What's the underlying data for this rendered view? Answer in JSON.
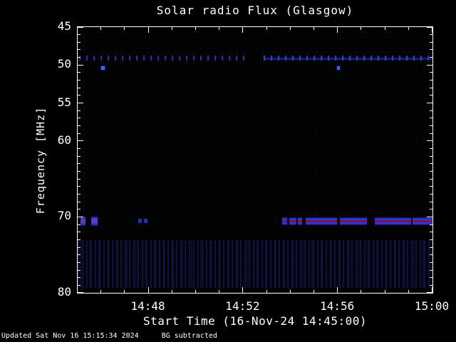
{
  "title": "Solar radio Flux (Glasgow)",
  "ylabel": "Frequency [MHz]",
  "xlabel": "Start Time (16-Nov-24 14:45:00)",
  "footer": {
    "updated": "Updated Sat Nov 16 15:15:34 2024",
    "bg": "BG subtracted"
  },
  "chart_data": {
    "type": "heatmap",
    "title": "Solar radio Flux (Glasgow)",
    "xlabel": "Start Time (16-Nov-24 14:45:00)",
    "ylabel": "Frequency [MHz]",
    "x_start": "14:45:00",
    "x_end": "15:00:00",
    "x_span_minutes": 15,
    "y_range": [
      45,
      80
    ],
    "y_inverted": true,
    "grid": false,
    "x_axis": {
      "major": [
        {
          "t": 3,
          "label": "14:48"
        },
        {
          "t": 7,
          "label": "14:52"
        },
        {
          "t": 11,
          "label": "14:56"
        },
        {
          "t": 15,
          "label": "15:00"
        }
      ],
      "minor_step_minutes": 1
    },
    "y_axis": {
      "major": [
        45,
        50,
        55,
        60,
        70,
        80
      ],
      "minor_step_mhz": 1
    },
    "colors": {
      "background": "#000000",
      "foreground": "#ffffff",
      "signal_blue": "#3340dd",
      "signal_core_red": "#8a1034",
      "noise_navy": "#181f6e"
    },
    "features": [
      {
        "kind": "dashes",
        "t0": 0.06,
        "t1": 7.15,
        "f0": 48.8,
        "f1": 49.45,
        "opacity": 0.8,
        "desc": "periodic interference dashes near 49 MHz"
      },
      {
        "kind": "dashes",
        "t0": 7.85,
        "t1": 14.97,
        "f0": 48.8,
        "f1": 49.45,
        "opacity": 1,
        "desc": "periodic interference dashes near 49 MHz"
      },
      {
        "kind": "line",
        "t0": 7.85,
        "t1": 15,
        "f0": 49.0,
        "f1": 49.3,
        "opacity": 0.45,
        "desc": "faint continuous carrier near 49 MHz"
      },
      {
        "kind": "dot",
        "t0": 1.0,
        "t1": 1.14,
        "f0": 50.2,
        "f1": 50.65,
        "desc": "bright point ~50.4 MHz at ~14:46"
      },
      {
        "kind": "dot",
        "t0": 10.95,
        "t1": 11.09,
        "f0": 50.2,
        "f1": 50.65,
        "desc": "bright point ~50.4 MHz at ~14:56"
      },
      {
        "kind": "blob",
        "t0": 0.12,
        "t1": 0.33,
        "f0": 70.0,
        "f1": 71.2,
        "desc": "strong burst ~70.6 MHz"
      },
      {
        "kind": "blob",
        "t0": 0.57,
        "t1": 0.84,
        "f0": 70.0,
        "f1": 71.2,
        "desc": "strong burst ~70.6 MHz"
      },
      {
        "kind": "smalldash",
        "t0": 2.55,
        "t1": 2.7,
        "f0": 70.25,
        "f1": 70.85
      },
      {
        "kind": "smalldash",
        "t0": 2.79,
        "t1": 2.94,
        "f0": 70.25,
        "f1": 70.85
      },
      {
        "kind": "band",
        "t0": 8.64,
        "t1": 8.85,
        "f0": 70.1,
        "f1": 71.1
      },
      {
        "kind": "band",
        "t0": 8.94,
        "t1": 9.24,
        "f0": 70.1,
        "f1": 71.1
      },
      {
        "kind": "band",
        "t0": 9.3,
        "t1": 9.48,
        "f0": 70.1,
        "f1": 71.1
      },
      {
        "kind": "band",
        "t0": 9.63,
        "t1": 10.95,
        "f0": 70.1,
        "f1": 71.1
      },
      {
        "kind": "band",
        "t0": 11.07,
        "t1": 12.24,
        "f0": 70.1,
        "f1": 71.1
      },
      {
        "kind": "band",
        "t0": 12.57,
        "t1": 14.1,
        "f0": 70.1,
        "f1": 71.1
      },
      {
        "kind": "band",
        "t0": 14.16,
        "t1": 15,
        "f0": 70.1,
        "f1": 71.1
      },
      {
        "kind": "stripes",
        "t0": 0,
        "t1": 15,
        "f0": 73.1,
        "f1": 79.3,
        "desc": "vertical noise striping band"
      }
    ]
  }
}
